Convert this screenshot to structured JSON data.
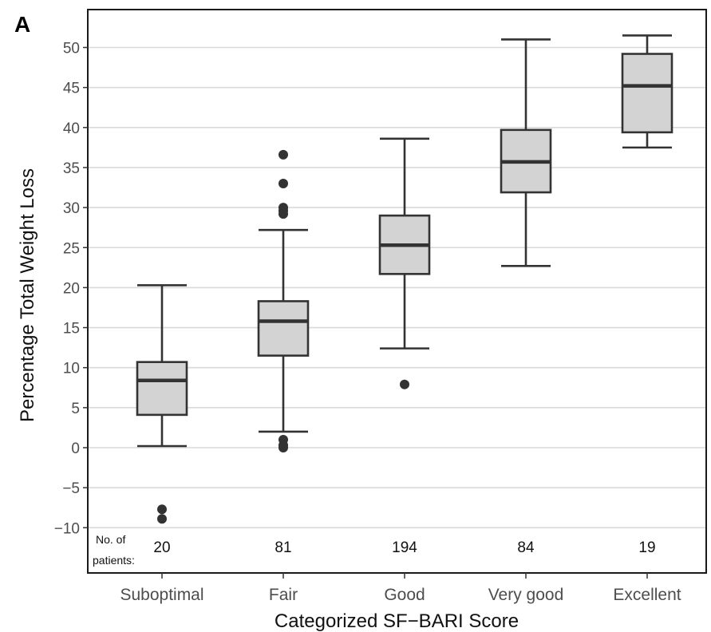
{
  "chart_data": {
    "type": "box",
    "panel_label": "A",
    "xlabel": "Categorized SF−BARI Score",
    "ylabel": "Percentage Total Weight Loss",
    "ylim": [
      -11,
      55
    ],
    "yticks": [
      -10,
      -5,
      0,
      5,
      10,
      15,
      20,
      25,
      30,
      35,
      40,
      45,
      50
    ],
    "ytick_labels": [
      "−10",
      "−5",
      "0",
      "5",
      "10",
      "15",
      "20",
      "25",
      "30",
      "35",
      "40",
      "45",
      "50"
    ],
    "grid": "horizontal",
    "categories": [
      "Suboptimal",
      "Fair",
      "Good",
      "Very good",
      "Excellent"
    ],
    "boxes": [
      {
        "category": "Suboptimal",
        "whisker_low": 0.2,
        "q1": 4.1,
        "median": 8.4,
        "q3": 10.7,
        "whisker_high": 20.3,
        "outliers": [
          -7.7,
          -8.9
        ]
      },
      {
        "category": "Fair",
        "whisker_low": 2.0,
        "q1": 11.5,
        "median": 15.8,
        "q3": 18.3,
        "whisker_high": 27.2,
        "outliers": [
          36.6,
          33.0,
          30.0,
          29.6,
          29.2,
          1.0,
          0.3,
          0.0
        ]
      },
      {
        "category": "Good",
        "whisker_low": 12.4,
        "q1": 21.7,
        "median": 25.3,
        "q3": 29.0,
        "whisker_high": 38.6,
        "outliers": [
          7.9
        ]
      },
      {
        "category": "Very good",
        "whisker_low": 22.7,
        "q1": 31.9,
        "median": 35.7,
        "q3": 39.7,
        "whisker_high": 51.0,
        "outliers": []
      },
      {
        "category": "Excellent",
        "whisker_low": 37.5,
        "q1": 39.4,
        "median": 45.2,
        "q3": 49.2,
        "whisker_high": 51.5,
        "outliers": []
      }
    ],
    "patient_counts_label_line1": "No. of",
    "patient_counts_label_line2": "patients:",
    "patient_counts": [
      "20",
      "81",
      "194",
      "84",
      "19"
    ],
    "colors": {
      "box_fill": "#d3d3d3",
      "line": "#333333",
      "grid": "#d9d9d9",
      "outlier": "#333333"
    }
  }
}
